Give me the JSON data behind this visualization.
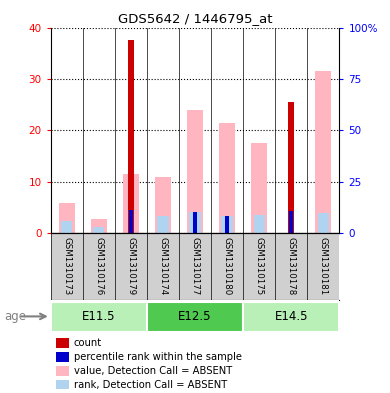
{
  "title": "GDS5642 / 1446795_at",
  "samples": [
    "GSM1310173",
    "GSM1310176",
    "GSM1310179",
    "GSM1310174",
    "GSM1310177",
    "GSM1310180",
    "GSM1310175",
    "GSM1310178",
    "GSM1310181"
  ],
  "count_values": [
    0,
    0,
    37.5,
    0,
    0,
    0,
    0,
    25.5,
    0
  ],
  "percentile_values": [
    0,
    0,
    11.5,
    0,
    10.5,
    8.5,
    0,
    11.0,
    0
  ],
  "value_absent": [
    5.8,
    2.8,
    11.5,
    11.0,
    24.0,
    21.5,
    17.5,
    0,
    31.5
  ],
  "rank_absent": [
    5.8,
    2.8,
    0,
    8.5,
    10.5,
    8.5,
    9.0,
    0,
    9.8
  ],
  "groups": [
    {
      "label": "E11.5",
      "start": 0,
      "end": 3
    },
    {
      "label": "E12.5",
      "start": 3,
      "end": 6
    },
    {
      "label": "E14.5",
      "start": 6,
      "end": 9
    }
  ],
  "group_colors": [
    "#b8f0b8",
    "#4fc94f",
    "#b8f0b8"
  ],
  "ylim_left": [
    0,
    40
  ],
  "ylim_right": [
    0,
    100
  ],
  "yticks_left": [
    0,
    10,
    20,
    30,
    40
  ],
  "yticks_right": [
    0,
    25,
    50,
    75,
    100
  ],
  "yticklabels_right": [
    "0",
    "25",
    "50",
    "75",
    "100%"
  ],
  "color_count": "#cc0000",
  "color_percentile": "#0000cc",
  "color_value_absent": "#FFB6C1",
  "color_rank_absent": "#b0d4f0",
  "background_color": "#d0d0d0"
}
